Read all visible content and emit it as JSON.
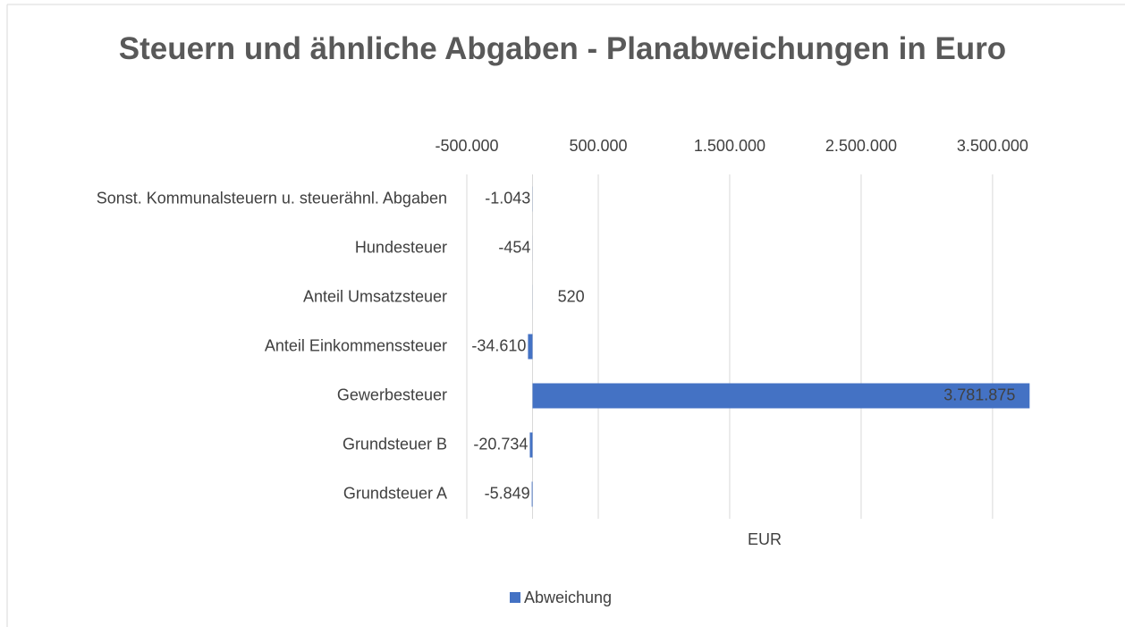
{
  "chart_data": {
    "type": "bar",
    "orientation": "horizontal",
    "title": "Steuern und ähnliche Abgaben - Planabweichungen in Euro",
    "x_label": "EUR",
    "categories": [
      "Sonst. Kommunalsteuern u. steuerähnl. Abgaben",
      "Hundesteuer",
      "Anteil Umsatzsteuer",
      "Anteil Einkommenssteuer",
      "Gewerbesteuer",
      "Grundsteuer B",
      "Grundsteuer A"
    ],
    "series": [
      {
        "name": "Abweichung",
        "color": "#4472c4",
        "values": [
          -1043,
          -454,
          520,
          -34610,
          3781875,
          -20734,
          -5849
        ],
        "value_labels": [
          "-1.043",
          "-454",
          "520",
          "-34.610",
          "3.781.875",
          "-20.734",
          "-5.849"
        ]
      }
    ],
    "xlim": [
      -500000,
      3800000
    ],
    "xticks": [
      {
        "value": -500000,
        "label": "-500.000"
      },
      {
        "value": 500000,
        "label": "500.000"
      },
      {
        "value": 1500000,
        "label": "1.500.000"
      },
      {
        "value": 2500000,
        "label": "2.500.000"
      },
      {
        "value": 3500000,
        "label": "3.500.000"
      }
    ],
    "grid": true,
    "legend": "bottom"
  }
}
